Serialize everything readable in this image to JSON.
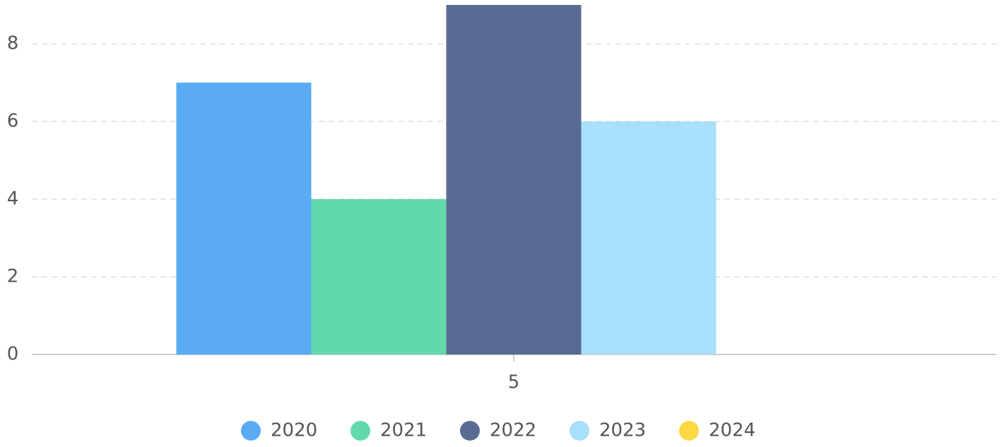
{
  "chart_data": {
    "type": "bar",
    "categories": [
      "5"
    ],
    "series": [
      {
        "name": "2020",
        "color": "#5aabf4",
        "values": [
          7
        ]
      },
      {
        "name": "2021",
        "color": "#62d9ab",
        "values": [
          4
        ]
      },
      {
        "name": "2022",
        "color": "#5a6b93",
        "values": [
          9
        ]
      },
      {
        "name": "2023",
        "color": "#a8dffa",
        "values": [
          6
        ]
      },
      {
        "name": "2024",
        "color": "#fdd843",
        "values": [
          null
        ]
      }
    ],
    "ylim": [
      0,
      9
    ],
    "yticks": [
      0,
      2,
      4,
      6,
      8
    ],
    "grid": true,
    "legend": "bottom"
  }
}
